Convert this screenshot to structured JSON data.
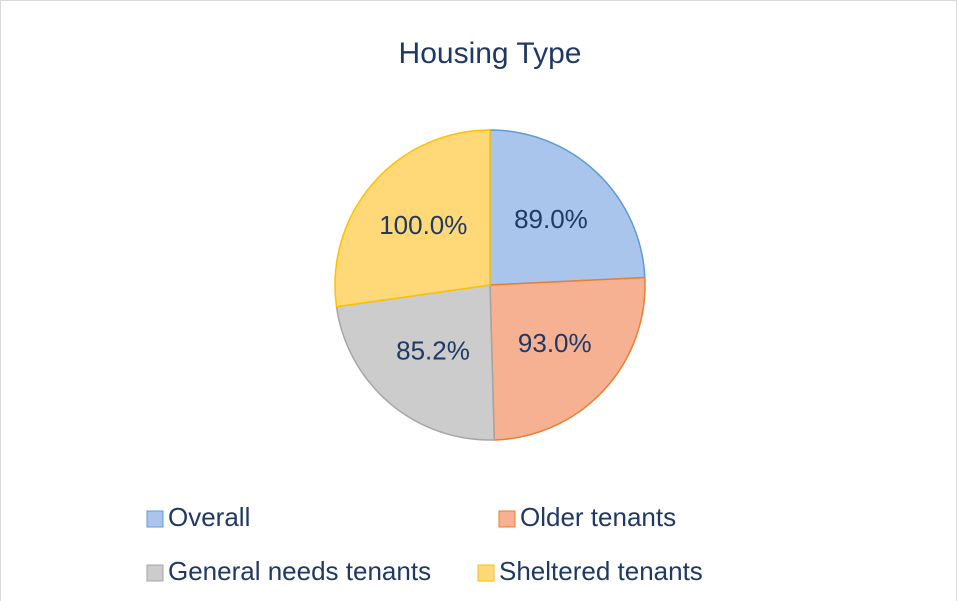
{
  "chart_data": {
    "type": "pie",
    "title": "Housing Type",
    "categories": [
      "Overall",
      "Older tenants",
      "General needs tenants",
      "Sheltered tenants"
    ],
    "values": [
      89.0,
      93.0,
      85.2,
      100.0
    ],
    "value_labels": [
      "89.0%",
      "93.0%",
      "85.2%",
      "100.0%"
    ],
    "colors": [
      "#a9c5eb",
      "#f6b193",
      "#cccccc",
      "#ffd978"
    ],
    "edge_colors": [
      "#5b9bd5",
      "#ed7d31",
      "#a5a5a5",
      "#ffc000"
    ],
    "legend": "bottom"
  }
}
